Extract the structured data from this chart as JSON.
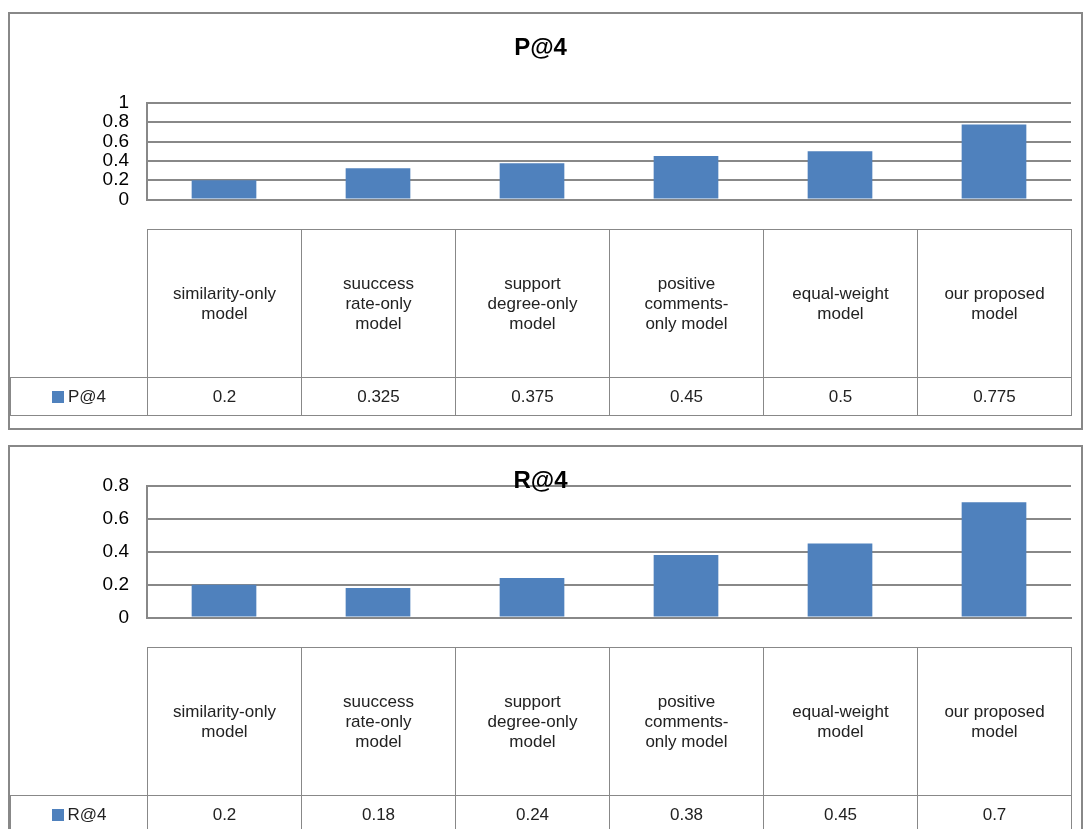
{
  "chart_data": [
    {
      "type": "bar",
      "title": "P@4",
      "categories": [
        "similarity-only model",
        "suuccess rate-only model",
        "support degree-only model",
        "positive comments-only model",
        "equal-weight model",
        "our proposed model"
      ],
      "series": [
        {
          "name": "P@4",
          "color": "#4f81bd",
          "values": [
            0.2,
            0.325,
            0.375,
            0.45,
            0.5,
            0.775
          ]
        }
      ],
      "ylim": [
        0,
        1
      ],
      "yticks": [
        0,
        0.2,
        0.4,
        0.6,
        0.8,
        1
      ],
      "grid": "y",
      "data_labels": true,
      "legend": "bottom"
    },
    {
      "type": "bar",
      "title": "R@4",
      "categories": [
        "similarity-only model",
        "suuccess rate-only model",
        "support degree-only model",
        "positive comments-only model",
        "equal-weight model",
        "our proposed model"
      ],
      "series": [
        {
          "name": "R@4",
          "color": "#4f81bd",
          "values": [
            0.2,
            0.18,
            0.24,
            0.38,
            0.45,
            0.7
          ]
        }
      ],
      "ylim": [
        0,
        0.8
      ],
      "yticks": [
        0,
        0.2,
        0.4,
        0.6,
        0.8
      ],
      "grid": "y",
      "data_labels": true,
      "legend": "bottom"
    }
  ]
}
